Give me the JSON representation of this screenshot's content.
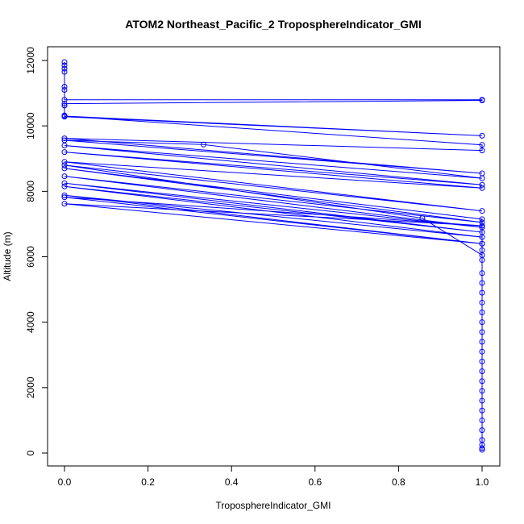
{
  "chart_data": {
    "type": "scatter",
    "title": "ATOM2 Northeast_Pacific_2 TroposphereIndicator_GMI",
    "xlabel": "TroposphereIndicator_GMI",
    "ylabel": "Altitude (m)",
    "xlim": [
      0,
      1
    ],
    "ylim": [
      0,
      12000
    ],
    "xticks": [
      "0.0",
      "0.2",
      "0.4",
      "0.6",
      "0.8",
      "1.0"
    ],
    "yticks": [
      "0",
      "2000",
      "4000",
      "6000",
      "8000",
      "10000",
      "12000"
    ],
    "grid": false,
    "color": "#0000ff",
    "series": [
      {
        "mode": "lines+markers",
        "points": [
          [
            0,
            11950
          ],
          [
            0,
            11850
          ],
          [
            0,
            11750
          ],
          [
            0,
            11650
          ],
          [
            0,
            11200
          ],
          [
            0,
            11100
          ],
          [
            0,
            10800
          ],
          [
            1,
            10800
          ],
          [
            1,
            10780
          ],
          [
            0,
            10680
          ],
          [
            0,
            10620
          ],
          [
            0,
            10320
          ],
          [
            0,
            10280
          ],
          [
            1,
            9700
          ],
          [
            0,
            10300
          ],
          [
            1,
            9420
          ],
          [
            1,
            9250
          ],
          [
            0,
            9620
          ],
          [
            1,
            8550
          ],
          [
            0,
            9560
          ],
          [
            0.333,
            9430
          ],
          [
            1,
            8400
          ],
          [
            0,
            9400
          ],
          [
            1,
            8200
          ],
          [
            0,
            9200
          ],
          [
            1,
            8100
          ],
          [
            0,
            8900
          ],
          [
            1,
            7400
          ],
          [
            0,
            8800
          ],
          [
            0.857,
            7180
          ],
          [
            1,
            6050
          ],
          [
            1,
            7150
          ],
          [
            0,
            8700
          ],
          [
            1,
            7050
          ],
          [
            0,
            8460
          ],
          [
            1,
            6900
          ],
          [
            0,
            8250
          ],
          [
            1,
            6750
          ],
          [
            0,
            8150
          ],
          [
            1,
            6600
          ],
          [
            0,
            7880
          ],
          [
            1,
            6400
          ],
          [
            0,
            7820
          ],
          [
            1,
            6950
          ],
          [
            0,
            7620
          ],
          [
            1,
            6400
          ],
          [
            1,
            6200
          ],
          [
            1,
            5900
          ],
          [
            1,
            5500
          ],
          [
            1,
            5200
          ],
          [
            1,
            4900
          ],
          [
            1,
            4600
          ],
          [
            1,
            4300
          ],
          [
            1,
            4000
          ],
          [
            1,
            3700
          ],
          [
            1,
            3400
          ],
          [
            1,
            3100
          ],
          [
            1,
            2800
          ],
          [
            1,
            2500
          ],
          [
            1,
            2200
          ],
          [
            1,
            1900
          ],
          [
            1,
            1600
          ],
          [
            1,
            1300
          ],
          [
            1,
            1000
          ],
          [
            1,
            700
          ],
          [
            1,
            400
          ],
          [
            1,
            250
          ],
          [
            1,
            150
          ],
          [
            1,
            100
          ]
        ]
      }
    ]
  }
}
